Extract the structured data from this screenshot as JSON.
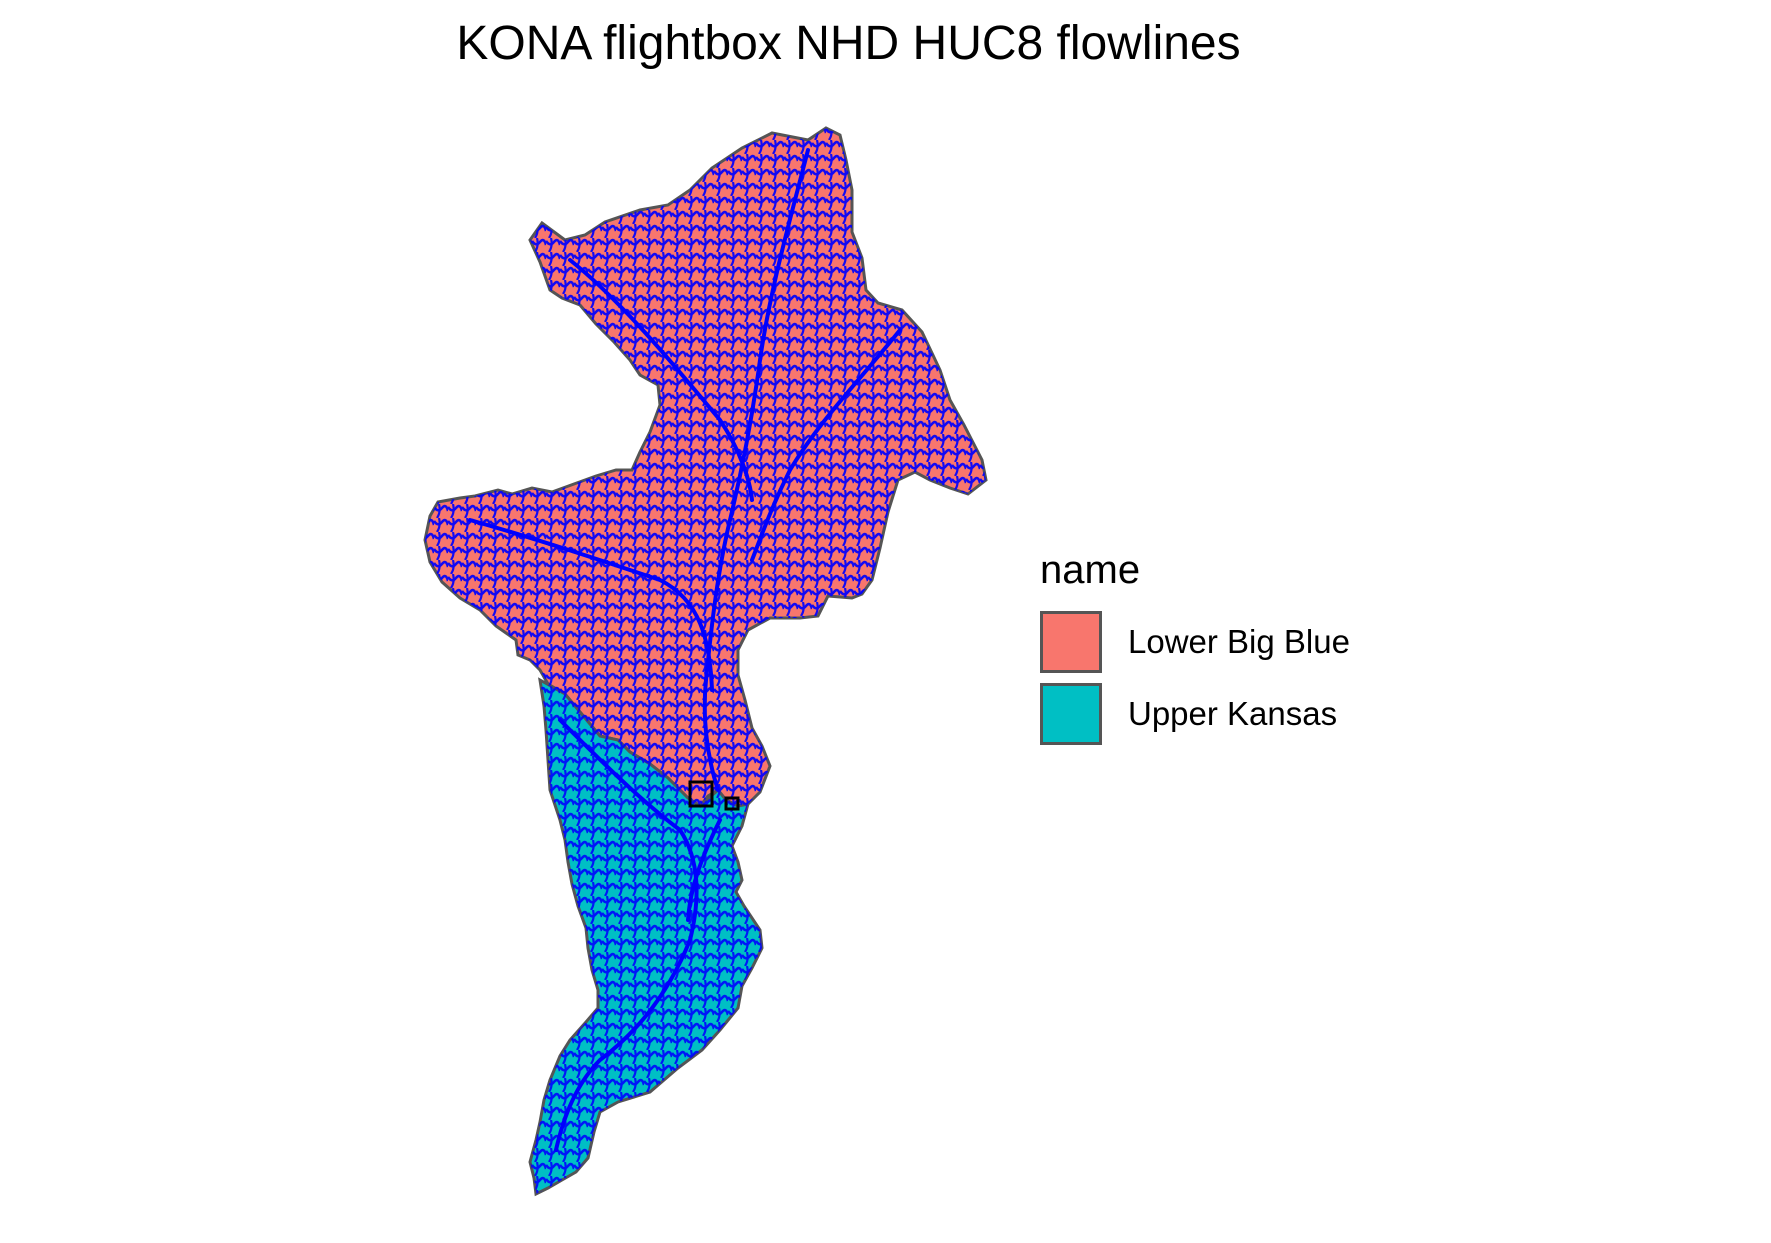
{
  "title": "KONA flightbox NHD HUC8 flowlines",
  "legend": {
    "title": "name",
    "position": "right",
    "items": [
      {
        "label": "Lower Big Blue",
        "color": "#F8766D"
      },
      {
        "label": "Upper Kansas",
        "color": "#00BFC4"
      }
    ]
  },
  "colors": {
    "flowlines": "#0000FF",
    "boundary_outline": "#555555",
    "flightbox_outline": "#000000"
  }
}
